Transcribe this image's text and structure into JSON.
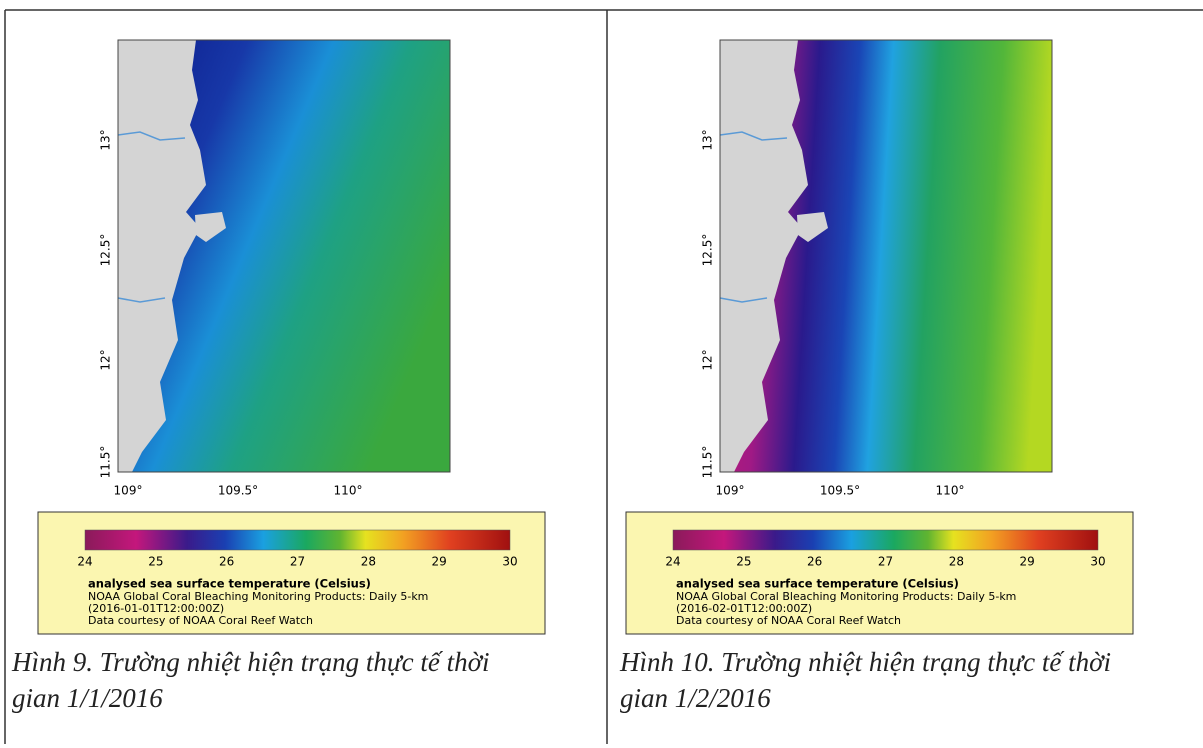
{
  "figures": [
    {
      "y_ticks": [
        "13°",
        "12.5°",
        "12°",
        "11.5°"
      ],
      "x_ticks": [
        "109°",
        "109.5°",
        "110°"
      ],
      "colorbar": {
        "ticks": [
          24,
          25,
          26,
          27,
          28,
          29,
          30
        ],
        "title": "analysed sea surface temperature (Celsius)",
        "lines": [
          "NOAA Global Coral Bleaching Monitoring Products: Daily 5-km",
          "(2016-01-01T12:00:00Z)",
          "Data courtesy of NOAA Coral Reef Watch"
        ]
      },
      "caption": [
        "Hình 9. Trường nhiệt hiện trạng thực tế thời",
        "gian 1/1/2016"
      ]
    },
    {
      "y_ticks": [
        "13°",
        "12.5°",
        "12°",
        "11.5°"
      ],
      "x_ticks": [
        "109°",
        "109.5°",
        "110°"
      ],
      "colorbar": {
        "ticks": [
          24,
          25,
          26,
          27,
          28,
          29,
          30
        ],
        "title": "analysed sea surface temperature (Celsius)",
        "lines": [
          "NOAA Global Coral Bleaching Monitoring Products: Daily 5-km",
          "(2016-02-01T12:00:00Z)",
          "Data courtesy of NOAA Coral Reef Watch"
        ]
      },
      "caption": [
        "Hình 10. Trường nhiệt hiện trạng thực tế thời",
        "gian 1/2/2016"
      ]
    }
  ]
}
